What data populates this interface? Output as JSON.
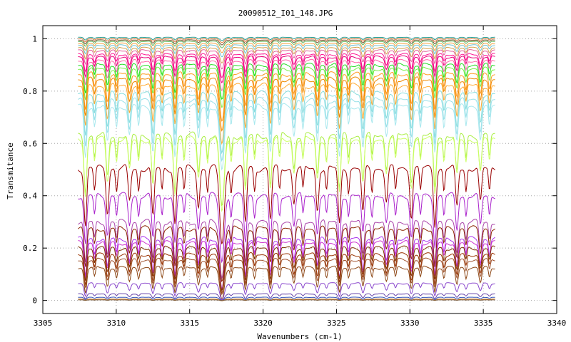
{
  "chart_data": {
    "type": "line",
    "title": "20090512_I01_148.JPG",
    "xlabel": "Wavenumbers (cm-1)",
    "ylabel": "Transmitance",
    "xlim": [
      3305,
      3340
    ],
    "ylim": [
      -0.05,
      1.05
    ],
    "x_ticks": [
      "3305",
      "3310",
      "3315",
      "3320",
      "3325",
      "3330",
      "3335",
      "3340"
    ],
    "y_ticks": [
      "0",
      "0.2",
      "0.4",
      "0.6",
      "0.8",
      "1"
    ],
    "x_range": [
      3307.4,
      3335.8
    ],
    "grid": true,
    "legend": "none",
    "absorption_lines": [
      3307.9,
      3309.4,
      3310.9,
      3312.5,
      3314.0,
      3315.6,
      3317.2,
      3318.8,
      3320.5,
      3322.1,
      3323.7,
      3325.2,
      3326.8,
      3328.4,
      3330.1,
      3331.7,
      3333.2,
      3334.8
    ],
    "series": [
      {
        "baseline": 1.005,
        "depth": 0.01,
        "color": "#2aa198"
      },
      {
        "baseline": 1.0,
        "depth": 0.012,
        "color": "#e07b39"
      },
      {
        "baseline": 0.995,
        "depth": 0.015,
        "color": "#7a5230"
      },
      {
        "baseline": 0.99,
        "depth": 0.02,
        "color": "#5cb85c"
      },
      {
        "baseline": 0.982,
        "depth": 0.028,
        "color": "#f4a340"
      },
      {
        "baseline": 0.975,
        "depth": 0.035,
        "color": "#6fc3d4"
      },
      {
        "baseline": 0.965,
        "depth": 0.045,
        "color": "#d4a04a"
      },
      {
        "baseline": 0.955,
        "depth": 0.055,
        "color": "#e0609a"
      },
      {
        "baseline": 0.94,
        "depth": 0.07,
        "color": "#ff1493"
      },
      {
        "baseline": 0.93,
        "depth": 0.08,
        "color": "#e8007a"
      },
      {
        "baseline": 0.915,
        "depth": 0.095,
        "color": "#ff66aa"
      },
      {
        "baseline": 0.9,
        "depth": 0.11,
        "color": "#22dd22"
      },
      {
        "baseline": 0.885,
        "depth": 0.12,
        "color": "#77ee44"
      },
      {
        "baseline": 0.865,
        "depth": 0.14,
        "color": "#ff9a1f"
      },
      {
        "baseline": 0.845,
        "depth": 0.15,
        "color": "#ee8800"
      },
      {
        "baseline": 0.82,
        "depth": 0.17,
        "color": "#ffaa33"
      },
      {
        "baseline": 0.79,
        "depth": 0.18,
        "color": "#88dddd"
      },
      {
        "baseline": 0.765,
        "depth": 0.19,
        "color": "#99e0e8"
      },
      {
        "baseline": 0.74,
        "depth": 0.2,
        "color": "#a8e8ee"
      },
      {
        "baseline": 0.63,
        "depth": 0.22,
        "color": "#aaee44"
      },
      {
        "baseline": 0.615,
        "depth": 0.22,
        "color": "#ccff66"
      },
      {
        "baseline": 0.505,
        "depth": 0.23,
        "color": "#990000"
      },
      {
        "baseline": 0.4,
        "depth": 0.2,
        "color": "#aa22cc"
      },
      {
        "baseline": 0.3,
        "depth": 0.17,
        "color": "#aa44aa"
      },
      {
        "baseline": 0.275,
        "depth": 0.16,
        "color": "#8b2500"
      },
      {
        "baseline": 0.235,
        "depth": 0.15,
        "color": "#aa33ee"
      },
      {
        "baseline": 0.22,
        "depth": 0.14,
        "color": "#cc33cc"
      },
      {
        "baseline": 0.2,
        "depth": 0.13,
        "color": "#7a3000"
      },
      {
        "baseline": 0.175,
        "depth": 0.12,
        "color": "#993300"
      },
      {
        "baseline": 0.155,
        "depth": 0.11,
        "color": "#a0522d"
      },
      {
        "baseline": 0.125,
        "depth": 0.1,
        "color": "#8b4513"
      },
      {
        "baseline": 0.065,
        "depth": 0.05,
        "color": "#8844cc"
      },
      {
        "baseline": 0.025,
        "depth": 0.02,
        "color": "#6644aa"
      },
      {
        "baseline": 0.012,
        "depth": 0.01,
        "color": "#3355bb"
      },
      {
        "baseline": 0.005,
        "depth": 0.005,
        "color": "#cc7722"
      },
      {
        "baseline": 0.002,
        "depth": 0.002,
        "color": "#775533"
      }
    ]
  }
}
